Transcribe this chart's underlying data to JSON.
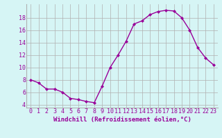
{
  "x": [
    0,
    1,
    2,
    3,
    4,
    5,
    6,
    7,
    8,
    9,
    10,
    11,
    12,
    13,
    14,
    15,
    16,
    17,
    18,
    19,
    20,
    21,
    22,
    23
  ],
  "y": [
    8.0,
    7.5,
    6.5,
    6.5,
    6.0,
    5.0,
    4.8,
    4.5,
    4.3,
    7.0,
    10.0,
    12.0,
    14.2,
    17.0,
    17.5,
    18.5,
    19.0,
    19.2,
    19.1,
    18.0,
    16.0,
    13.2,
    11.5,
    10.4
  ],
  "line_color": "#990099",
  "marker": "D",
  "marker_size": 2.0,
  "line_width": 1.0,
  "background_color": "#d6f5f5",
  "grid_color": "#b0b0b0",
  "xlabel": "Windchill (Refroidissement éolien,°C)",
  "xlabel_fontsize": 6.5,
  "tick_fontsize": 6.0,
  "ylim": [
    3.5,
    20.2
  ],
  "xlim": [
    -0.5,
    23.5
  ],
  "yticks": [
    4,
    6,
    8,
    10,
    12,
    14,
    16,
    18
  ],
  "xticks": [
    0,
    1,
    2,
    3,
    4,
    5,
    6,
    7,
    8,
    9,
    10,
    11,
    12,
    13,
    14,
    15,
    16,
    17,
    18,
    19,
    20,
    21,
    22,
    23
  ]
}
